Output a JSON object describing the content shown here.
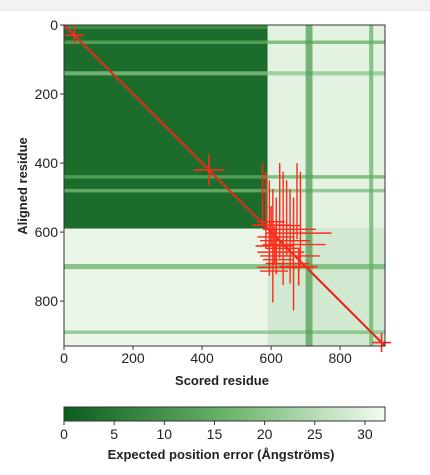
{
  "chart_data": {
    "type": "heatmap",
    "title": "",
    "xlabel": "Scored residue",
    "ylabel": "Aligned residue",
    "n_residues": 930,
    "xlim": [
      0,
      930
    ],
    "ylim": [
      0,
      930
    ],
    "x_ticks": [
      0,
      200,
      400,
      600,
      800
    ],
    "y_ticks": [
      0,
      200,
      400,
      600,
      800
    ],
    "domains": [
      {
        "start": 0,
        "end": 590,
        "pae_within": 3,
        "pae_to_rest": 30
      },
      {
        "start": 590,
        "end": 930,
        "pae_within": 28,
        "pae_to_rest": 31
      }
    ],
    "stripes": [
      {
        "axis": "row",
        "position": 50,
        "width": 10,
        "pae": 15
      },
      {
        "axis": "row",
        "position": 140,
        "width": 12,
        "pae": 20
      },
      {
        "axis": "row",
        "position": 440,
        "width": 10,
        "pae": 15
      },
      {
        "axis": "row",
        "position": 480,
        "width": 10,
        "pae": 18
      },
      {
        "axis": "row",
        "position": 700,
        "width": 15,
        "pae": 16
      },
      {
        "axis": "row",
        "position": 890,
        "width": 10,
        "pae": 18
      },
      {
        "axis": "col",
        "position": 710,
        "width": 20,
        "pae": 12
      },
      {
        "axis": "col",
        "position": 890,
        "width": 12,
        "pae": 16
      }
    ],
    "overlay_crosses": [
      {
        "x": 30,
        "y": 30
      },
      {
        "x": 420,
        "y": 420
      },
      {
        "x": 600,
        "y": 580
      },
      {
        "x": 610,
        "y": 640
      },
      {
        "x": 680,
        "y": 700
      },
      {
        "x": 920,
        "y": 920
      }
    ],
    "overlay_color": "#ff2a1a",
    "colorbar": {
      "label": "Expected position error (Ångströms)",
      "min": 0,
      "max": 32,
      "ticks": [
        0,
        5,
        10,
        15,
        20,
        25,
        30
      ],
      "color_low": "#0b5d1e",
      "color_high": "#f4fbf2"
    }
  }
}
